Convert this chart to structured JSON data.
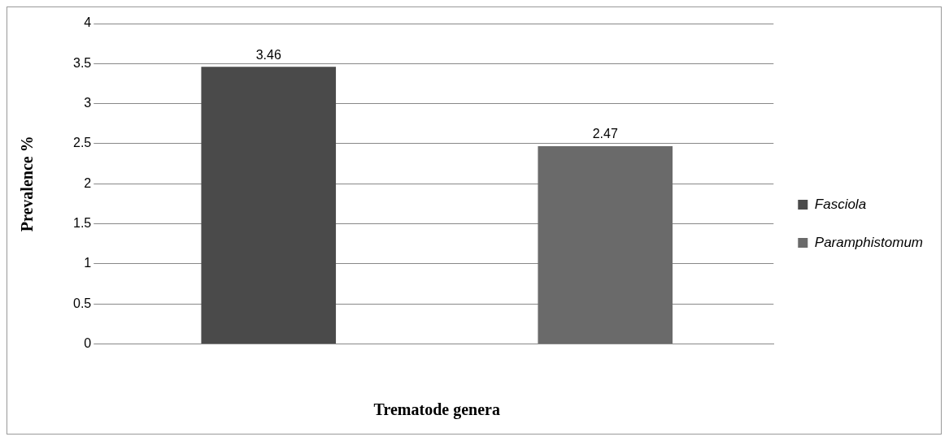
{
  "chart_data": {
    "type": "bar",
    "categories": [
      null,
      null
    ],
    "series": [
      {
        "name": "Fasciola",
        "color": "#4a4a4a",
        "values": [
          3.46,
          null
        ]
      },
      {
        "name": "Paramphistomum",
        "color": "#6a6a6a",
        "values": [
          null,
          2.47
        ]
      }
    ],
    "ylabel": "Prevalence %",
    "xlabel": "Trematode genera",
    "ylim": [
      0,
      4
    ],
    "yticks": [
      0,
      0.5,
      1,
      1.5,
      2,
      2.5,
      3,
      3.5,
      4
    ],
    "grid": "y",
    "legend": "right",
    "data_labels": true
  }
}
